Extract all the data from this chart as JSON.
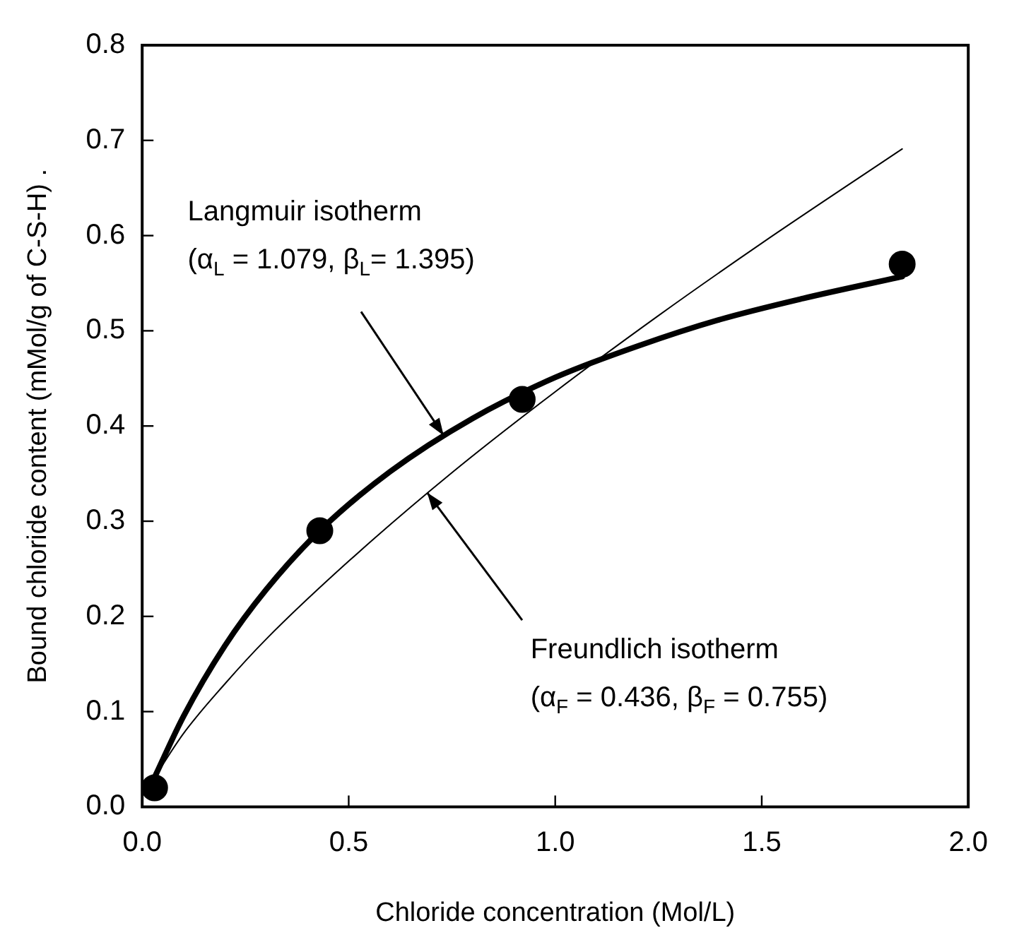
{
  "chart_data": {
    "type": "scatter",
    "xlabel": "Chloride concentration (Mol/L)",
    "ylabel": "Bound chloride content (mMol/g of C-S-H) .",
    "xlim": [
      0,
      2
    ],
    "xticks": [
      {
        "value": 0,
        "label": "0.0"
      },
      {
        "value": 0.5,
        "label": "0.5"
      },
      {
        "value": 1,
        "label": "1.0"
      },
      {
        "value": 1.5,
        "label": "1.5"
      },
      {
        "value": 2,
        "label": "2.0"
      }
    ],
    "ylim": [
      0,
      0.8
    ],
    "yticks": [
      {
        "value": 0,
        "label": "0.0"
      },
      {
        "value": 0.1,
        "label": "0.1"
      },
      {
        "value": 0.2,
        "label": "0.2"
      },
      {
        "value": 0.3,
        "label": "0.3"
      },
      {
        "value": 0.4,
        "label": "0.4"
      },
      {
        "value": 0.5,
        "label": "0.5"
      },
      {
        "value": 0.6,
        "label": "0.6"
      },
      {
        "value": 0.7,
        "label": "0.7"
      },
      {
        "value": 0.8,
        "label": "0.8"
      }
    ],
    "grid": false,
    "legend": false,
    "series": [
      {
        "type": "line",
        "color": "#000000",
        "marker": "none",
        "x": [
          0.03,
          0.1,
          0.2,
          0.3,
          0.43,
          0.6,
          0.8,
          1.0,
          1.2,
          1.4,
          1.6,
          1.84
        ],
        "values": [
          0.031,
          0.095,
          0.169,
          0.228,
          0.29,
          0.352,
          0.408,
          0.451,
          0.484,
          0.512,
          0.534,
          0.557
        ]
      },
      {
        "type": "line",
        "color": "#000000",
        "marker": "none",
        "x": [
          0.03,
          0.1,
          0.2,
          0.3,
          0.5,
          0.75,
          1.0,
          1.25,
          1.5,
          1.84
        ],
        "values": [
          0.031,
          0.077,
          0.129,
          0.176,
          0.258,
          0.351,
          0.436,
          0.516,
          0.592,
          0.691
        ]
      },
      {
        "type": "scatter",
        "color": "#000000",
        "marker": "circle",
        "x": [
          0.03,
          0.43,
          0.92,
          1.84
        ],
        "values": [
          0.02,
          0.29,
          0.428,
          0.57
        ]
      }
    ],
    "annotations": [
      {
        "text": "Langmuir isotherm\n(α$_{L}$ = 1.079, β$_{L}$= 1.395)",
        "x": 0.73,
        "y": 0.39
      },
      {
        "text": "Freundlich isotherm\n(α$_{F}$ = 0.436, β$_{F}$ = 0.755)",
        "x": 0.69,
        "y": 0.33
      }
    ]
  }
}
